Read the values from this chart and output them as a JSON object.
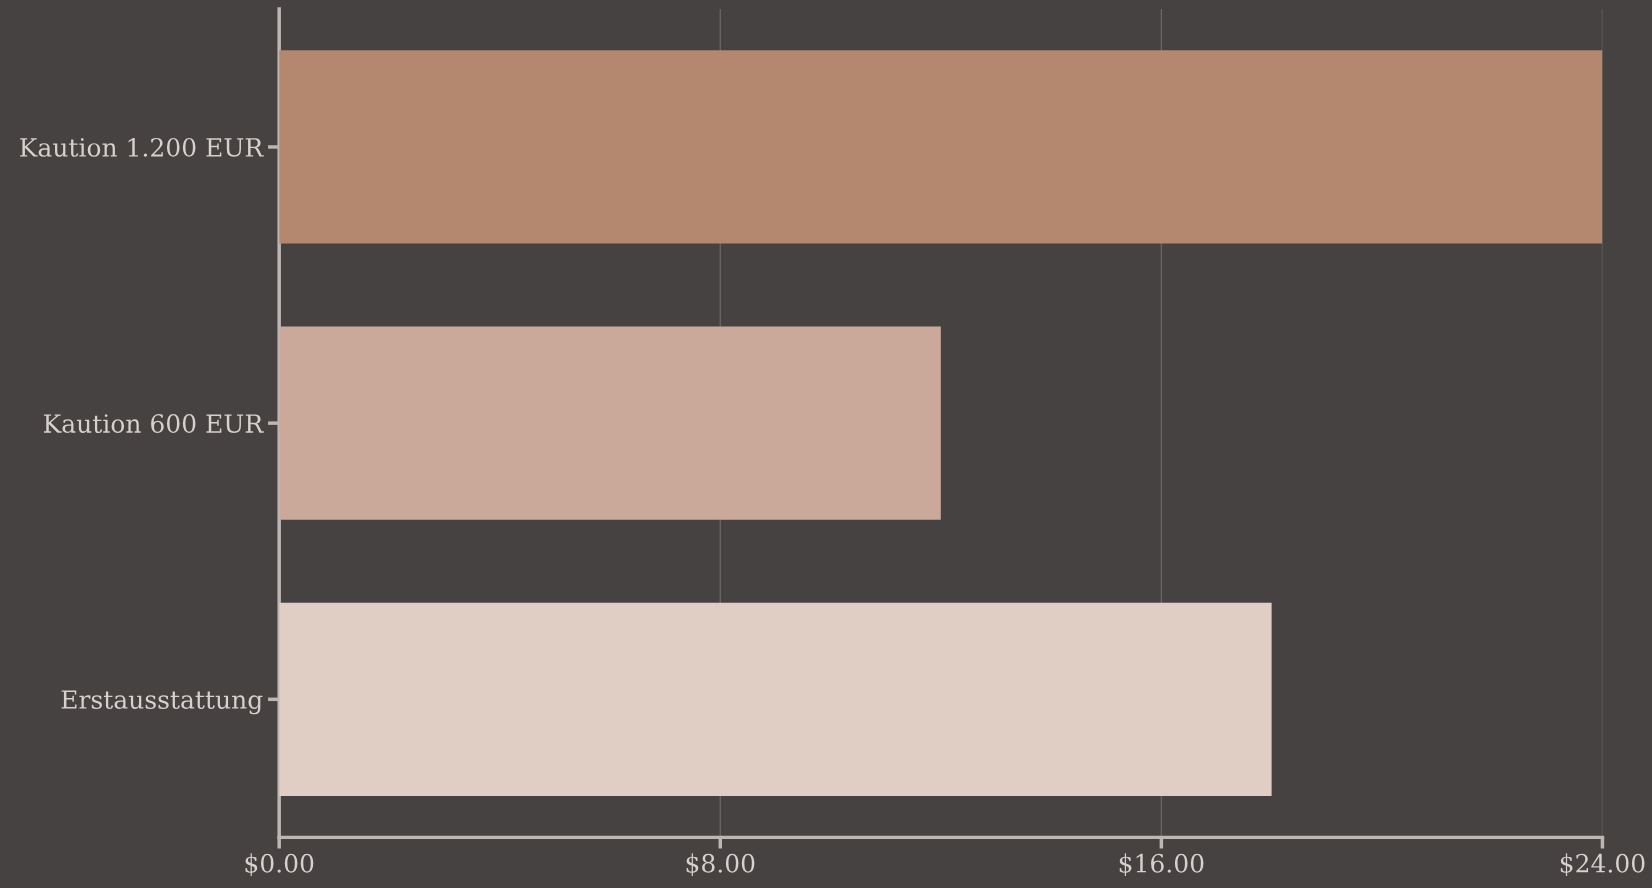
{
  "chart_data": {
    "type": "bar",
    "orientation": "horizontal",
    "categories": [
      "Kaution 1.200 EUR",
      "Kaution 600 EUR",
      "Erstausstattung"
    ],
    "values": [
      24,
      12,
      18
    ],
    "colors": [
      "#b4876f",
      "#cba99a",
      "#e0cec4"
    ],
    "xlim": [
      0,
      24
    ],
    "xticks": [
      {
        "value": 0,
        "label": "$0.00"
      },
      {
        "value": 8,
        "label": "$8.00"
      },
      {
        "value": 16,
        "label": "$16.00"
      },
      {
        "value": 24,
        "label": "$24.00"
      }
    ],
    "grid": "x",
    "legend": false
  }
}
